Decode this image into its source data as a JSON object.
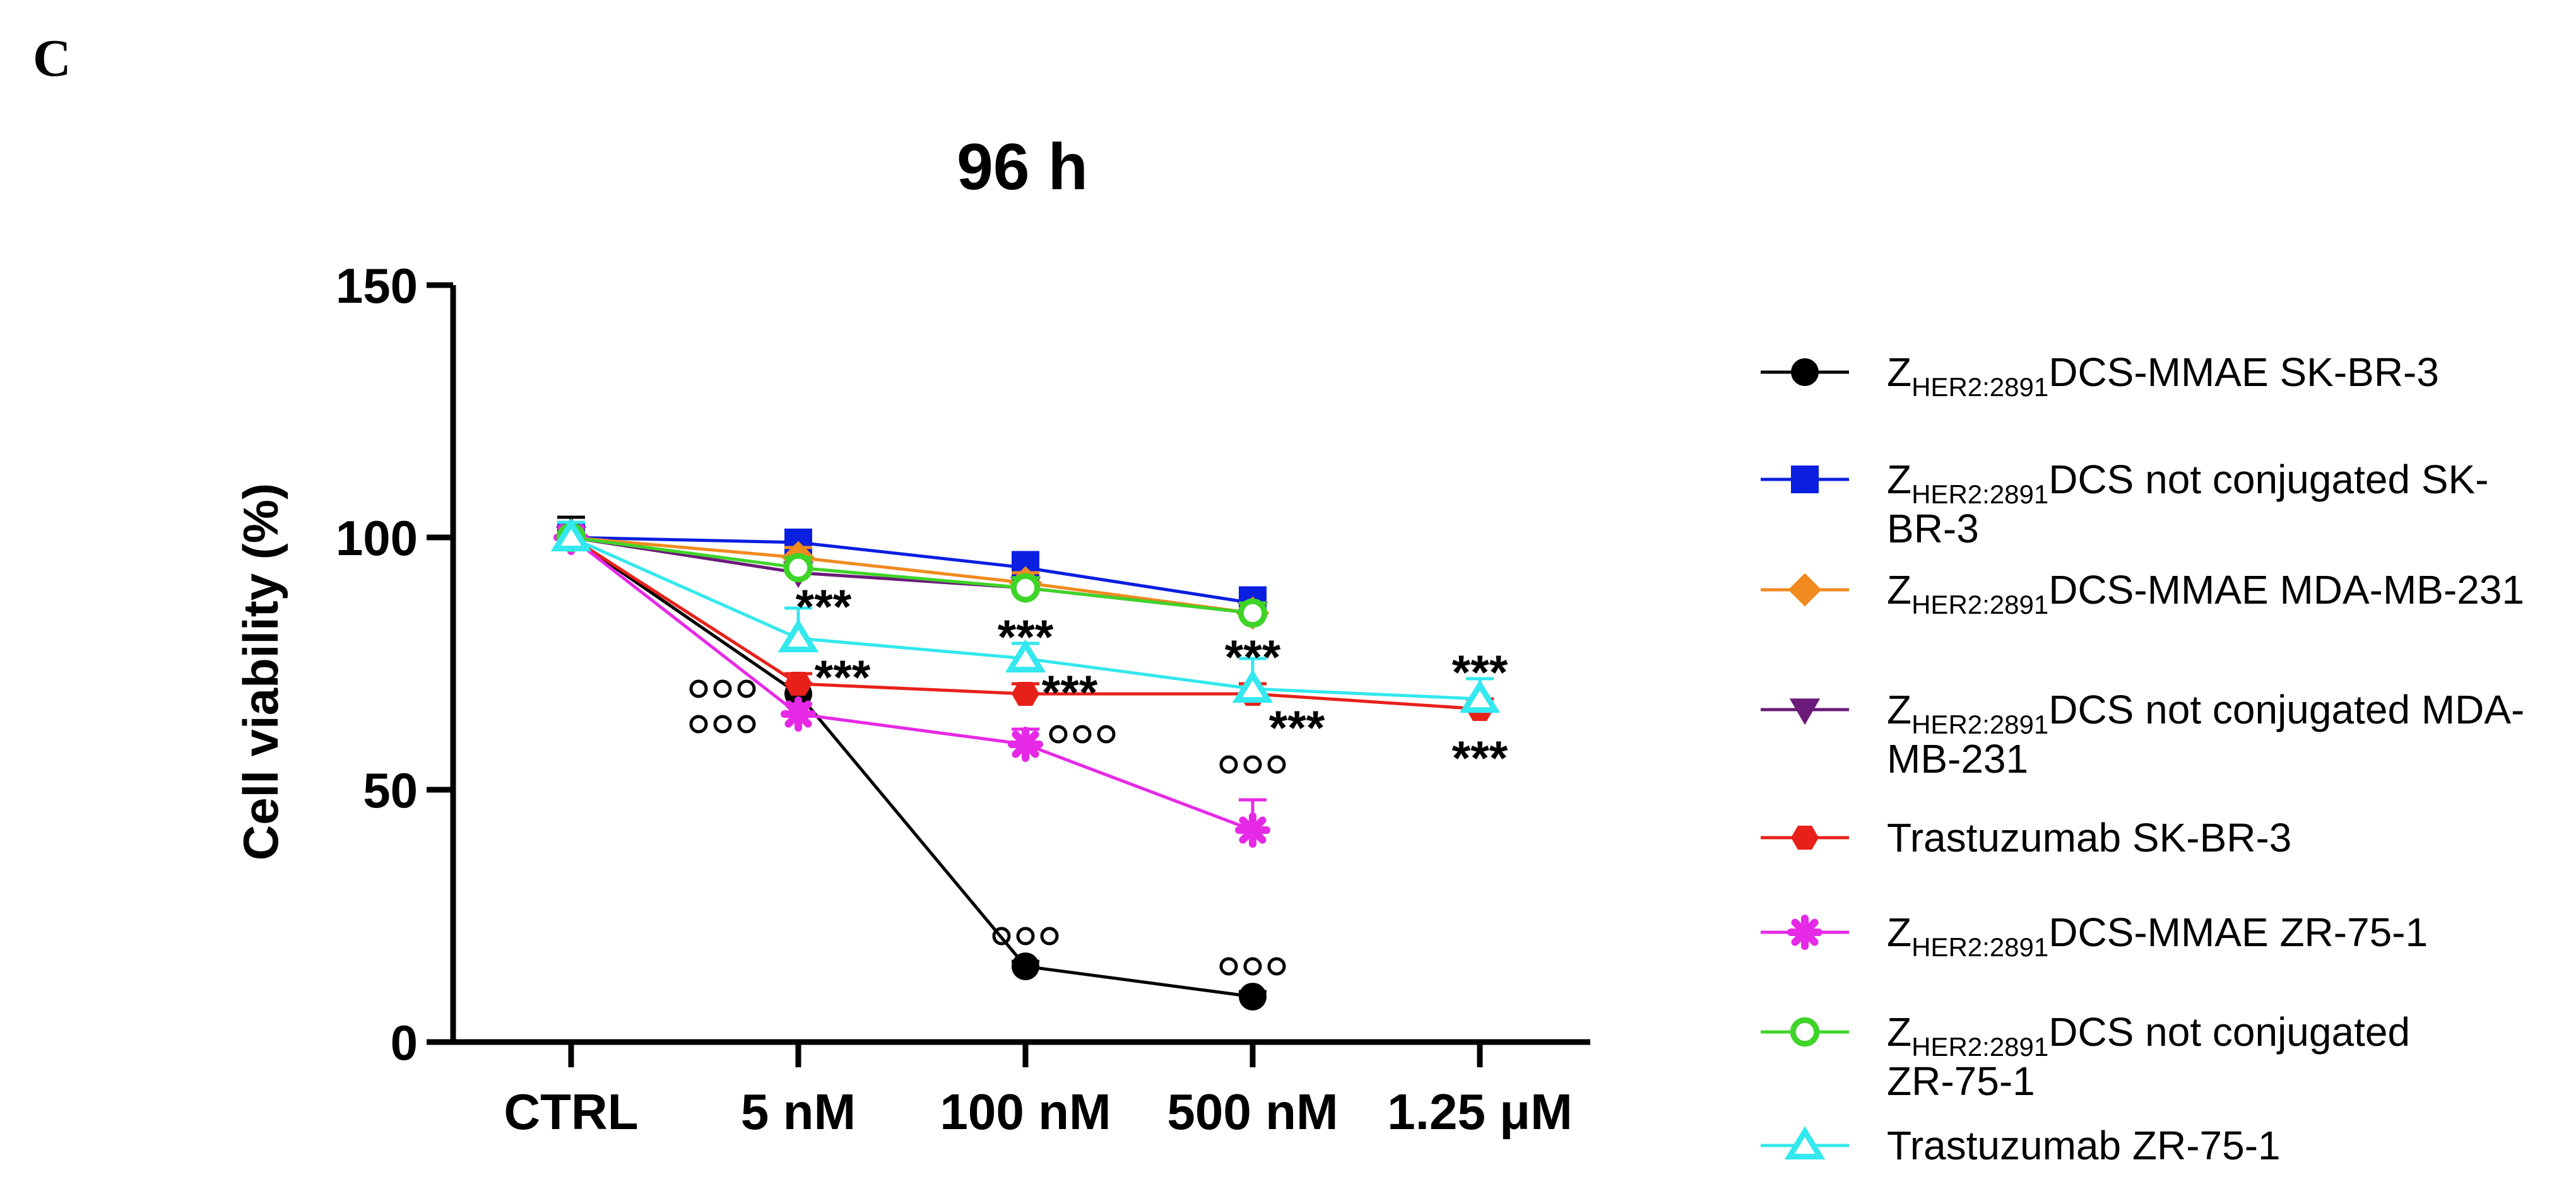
{
  "panel_label": "C",
  "chart_data": {
    "type": "line",
    "title": "96 h",
    "xlabel": "",
    "ylabel": "Cell viability (%)",
    "ylim": [
      0,
      150
    ],
    "yticks": [
      0,
      50,
      100,
      150
    ],
    "categories": [
      "CTRL",
      "5 nM",
      "100 nM",
      "500 nM",
      "1.25 μM"
    ],
    "series": [
      {
        "name_main": "Z",
        "name_sub": "HER2:2891",
        "name_rest": "DCS-MMAE SK-BR-3",
        "name_line2": "",
        "color": "#000000",
        "marker": "circle",
        "values": [
          100,
          69,
          15,
          9,
          null
        ],
        "err": [
          4,
          2,
          1,
          1,
          null
        ]
      },
      {
        "name_main": "Z",
        "name_sub": "HER2:2891",
        "name_rest": "DCS not conjugated SK-",
        "name_line2": "BR-3",
        "color": "#0a1fe0",
        "marker": "square",
        "values": [
          100,
          99,
          94,
          87,
          null
        ],
        "err": [
          3,
          1,
          3,
          3,
          null
        ]
      },
      {
        "name_main": "Z",
        "name_sub": "HER2:2891",
        "name_rest": "DCS-MMAE MDA-MB-231",
        "name_line2": "",
        "color": "#f08a1e",
        "marker": "diamond",
        "values": [
          100,
          96,
          91,
          85,
          null
        ],
        "err": [
          3,
          2,
          2,
          2,
          null
        ]
      },
      {
        "name_main": "Z",
        "name_sub": "HER2:2891",
        "name_rest": "DCS not conjugated MDA-",
        "name_line2": "MB-231",
        "color": "#6b1a7a",
        "marker": "triangle-down",
        "values": [
          100,
          93,
          90,
          85,
          null
        ],
        "err": [
          3,
          2,
          2,
          2,
          null
        ]
      },
      {
        "name_main": "Trastuzumab SK-BR-3",
        "name_sub": "",
        "name_rest": "",
        "name_line2": "",
        "color": "#e8201a",
        "marker": "hexagon",
        "values": [
          100,
          71,
          69,
          69,
          66
        ],
        "err": [
          3,
          2,
          2,
          2,
          2
        ]
      },
      {
        "name_main": "Z",
        "name_sub": "HER2:2891",
        "name_rest": "DCS-MMAE ZR-75-1",
        "name_line2": "",
        "color": "#e629e6",
        "marker": "asterisk",
        "values": [
          100,
          65,
          59,
          42,
          null
        ],
        "err": [
          3,
          2,
          3,
          6,
          null
        ]
      },
      {
        "name_main": "Z",
        "name_sub": "HER2:2891",
        "name_rest": "DCS not conjugated",
        "name_line2": "ZR-75-1",
        "color": "#3fd428",
        "marker": "open-circle",
        "values": [
          100,
          94,
          90,
          85,
          null
        ],
        "err": [
          3,
          2,
          2,
          2,
          null
        ]
      },
      {
        "name_main": "Trastuzumab ZR-75-1",
        "name_sub": "",
        "name_rest": "",
        "name_line2": "",
        "color": "#33e8ee",
        "marker": "open-triangle",
        "values": [
          100,
          80,
          76,
          70,
          68
        ],
        "err": [
          3,
          6,
          3,
          6,
          4
        ]
      }
    ],
    "annotations": [
      {
        "text": "***",
        "x_index": 1,
        "y": 88
      },
      {
        "text": "***",
        "x_index": 1,
        "y": 74
      },
      {
        "text": "ooo",
        "x_index": 1,
        "y": 70
      },
      {
        "text": "ooo",
        "x_index": 1,
        "y": 63
      },
      {
        "text": "***",
        "x_index": 2,
        "y": 82
      },
      {
        "text": "***",
        "x_index": 2,
        "y": 71
      },
      {
        "text": "ooo",
        "x_index": 2,
        "y": 61
      },
      {
        "text": "ooo",
        "x_index": 2,
        "y": 21
      },
      {
        "text": "***",
        "x_index": 3,
        "y": 78
      },
      {
        "text": "***",
        "x_index": 3,
        "y": 64
      },
      {
        "text": "ooo",
        "x_index": 3,
        "y": 55
      },
      {
        "text": "ooo",
        "x_index": 3,
        "y": 15
      },
      {
        "text": "***",
        "x_index": 4,
        "y": 75
      },
      {
        "text": "***",
        "x_index": 4,
        "y": 58
      }
    ]
  }
}
